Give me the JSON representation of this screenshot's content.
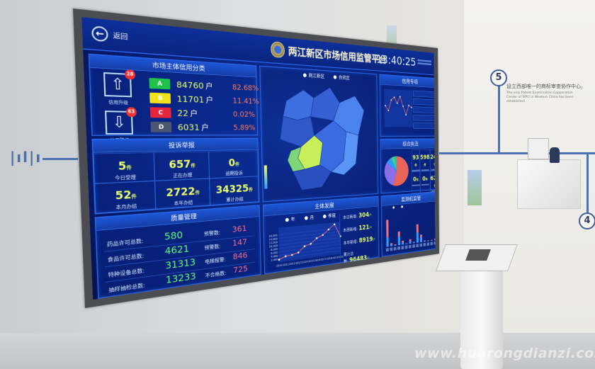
{
  "header": {
    "back_label": "返回",
    "title": "两江新区市场信用监管平台",
    "clock": "13:40:25"
  },
  "credit": {
    "title": "市场主体信用分类",
    "upgrade": {
      "label": "信用升级",
      "badge": "28"
    },
    "downgrade": {
      "label": "信用降级",
      "badge": "63"
    },
    "grades": [
      {
        "grade": "A",
        "count": "84760",
        "unit": "户",
        "pct": "82.68%",
        "color": "#1fc24a"
      },
      {
        "grade": "B",
        "count": "11701",
        "unit": "户",
        "pct": "11.41%",
        "color": "#f2e21a"
      },
      {
        "grade": "C",
        "count": "22",
        "unit": "户",
        "pct": "0.02%",
        "color": "#e8253a"
      },
      {
        "grade": "D",
        "count": "6031",
        "unit": "户",
        "pct": "5.89%",
        "color": "#4a5670"
      }
    ]
  },
  "complaints": {
    "title": "投诉举报",
    "unit": "件",
    "items": [
      {
        "value": "5",
        "label": "今日受理"
      },
      {
        "value": "657",
        "label": "正在办理"
      },
      {
        "value": "0",
        "label": "逾期投诉"
      },
      {
        "value": "52",
        "label": "本月办结"
      },
      {
        "value": "2722",
        "label": "本年办结"
      },
      {
        "value": "34325",
        "label": "累计办结"
      }
    ]
  },
  "quality": {
    "title": "质量管理",
    "rows": [
      {
        "label": "药品许可总数:",
        "value": "580",
        "rlabel": "预警数:",
        "rvalue": "361"
      },
      {
        "label": "食品许可总数:",
        "value": "4621",
        "rlabel": "预警数:",
        "rvalue": "147"
      },
      {
        "label": "特种设备总数:",
        "value": "31313",
        "rlabel": "电梯报警:",
        "rvalue": "846"
      },
      {
        "label": "抽样抽检总数:",
        "value": "13233",
        "rlabel": "不合格数:",
        "rvalue": "725"
      }
    ]
  },
  "map": {
    "toggles": [
      "两江新区",
      "自贸区"
    ]
  },
  "development": {
    "title": "主体发展",
    "legend": [
      "年",
      "月",
      "季度"
    ],
    "stats": [
      {
        "label": "本日新增:",
        "value": "304",
        "unit": "户"
      },
      {
        "label": "本周新增:",
        "value": "121",
        "unit": "户"
      },
      {
        "label": "本年新增:",
        "value": "8919",
        "unit": "户"
      },
      {
        "label": "累计总数:",
        "value": "96483",
        "unit": "户"
      }
    ]
  },
  "chart_data": {
    "type": "line",
    "x": [
      "2010",
      "2011",
      "2012",
      "2013",
      "2014",
      "2015",
      "2016",
      "2017",
      "2018",
      "2019",
      "2020"
    ],
    "values": [
      1500,
      3000,
      3300,
      4200,
      7500,
      8500,
      11500,
      13000,
      16000,
      18800,
      11000
    ],
    "yticks": [
      "2,000",
      "4,000",
      "6,000",
      "8,000",
      "10,000",
      "12,000",
      "14,000",
      "16,000"
    ],
    "ylim": [
      0,
      20000
    ],
    "color": "#e0607a"
  },
  "credit_special": {
    "title": "信用专项",
    "series": [
      40,
      30,
      52,
      58,
      46,
      60,
      40,
      22,
      42,
      38
    ]
  },
  "enforcement": {
    "title": "综合执法",
    "unit": "件",
    "values": [
      "93",
      "598",
      "244",
      "0",
      "0",
      "623"
    ],
    "pie": [
      {
        "value": 55,
        "color": "#e8645a"
      },
      {
        "value": 30,
        "color": "#8a6fe6"
      },
      {
        "value": 8,
        "color": "#2f9bff"
      },
      {
        "value": 4,
        "color": "#4fd46a"
      },
      {
        "value": 3,
        "color": "#1fc2c2"
      }
    ]
  },
  "monitoring": {
    "title": "监测机监管",
    "bars": [
      [
        22,
        40
      ],
      [
        4,
        3
      ],
      [
        1,
        2
      ],
      [
        20,
        12
      ],
      [
        5,
        4
      ],
      [
        1,
        1
      ],
      [
        6,
        4
      ],
      [
        2,
        1
      ],
      [
        24,
        20
      ],
      [
        12,
        6
      ],
      [
        2,
        1
      ],
      [
        1,
        1
      ],
      [
        1,
        1
      ],
      [
        2,
        2
      ]
    ]
  },
  "wall": {
    "poster_cn": "设立西部唯一的商标审查协作中心。",
    "poster_en": "The only Patent Examination Cooperation Center of SIPO in Western China has been established.",
    "step_5": "5",
    "step_4": "4",
    "watermark": "www.huarongdianzi.com"
  }
}
